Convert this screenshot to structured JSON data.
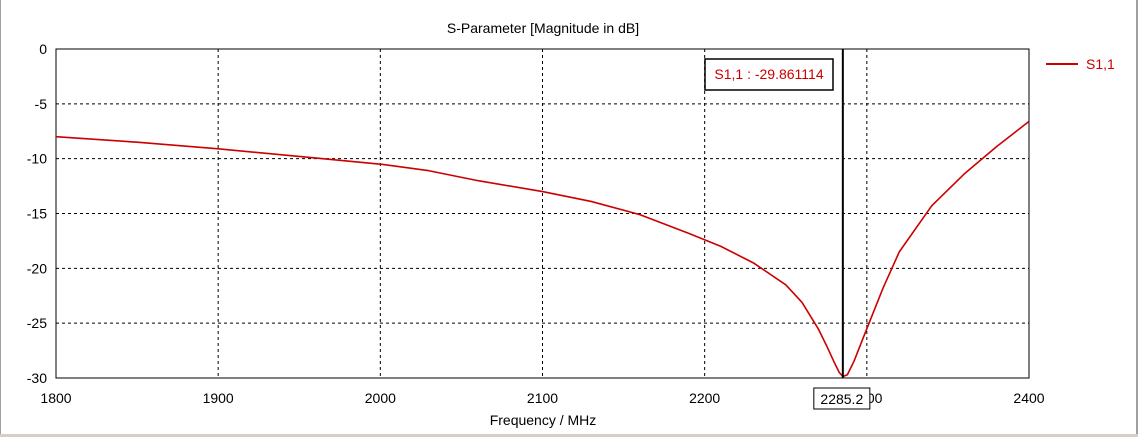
{
  "chart_data": {
    "type": "line",
    "title": "S-Parameter [Magnitude in dB]",
    "xlabel": "Frequency / MHz",
    "ylabel": "",
    "xlim": [
      1800,
      2400
    ],
    "ylim": [
      -30,
      0
    ],
    "xticks": [
      "1800",
      "1900",
      "2000",
      "2100",
      "2200",
      "2300",
      "2400"
    ],
    "yticks": [
      "0",
      "-5",
      "-10",
      "-15",
      "-20",
      "-25",
      "-30"
    ],
    "grid": true,
    "legend_position": "top-right",
    "series": [
      {
        "name": "S1,1",
        "color": "#cc0000",
        "x": [
          1800,
          1850,
          1900,
          1950,
          2000,
          2030,
          2060,
          2100,
          2130,
          2160,
          2190,
          2210,
          2230,
          2250,
          2260,
          2270,
          2275,
          2280,
          2283,
          2285.2,
          2288,
          2292,
          2300,
          2310,
          2320,
          2340,
          2360,
          2380,
          2400
        ],
        "y": [
          -8.0,
          -8.5,
          -9.1,
          -9.8,
          -10.5,
          -11.1,
          -12.0,
          -13.0,
          -13.9,
          -15.1,
          -16.8,
          -18.0,
          -19.5,
          -21.5,
          -23.1,
          -25.5,
          -27.0,
          -28.6,
          -29.5,
          -29.86,
          -29.7,
          -28.5,
          -25.5,
          -21.8,
          -18.5,
          -14.3,
          -11.4,
          -8.9,
          -6.6
        ]
      }
    ],
    "marker": {
      "x": 2285.2,
      "x_label": "2285.2",
      "readout": "S1,1 : -29.861114"
    }
  }
}
